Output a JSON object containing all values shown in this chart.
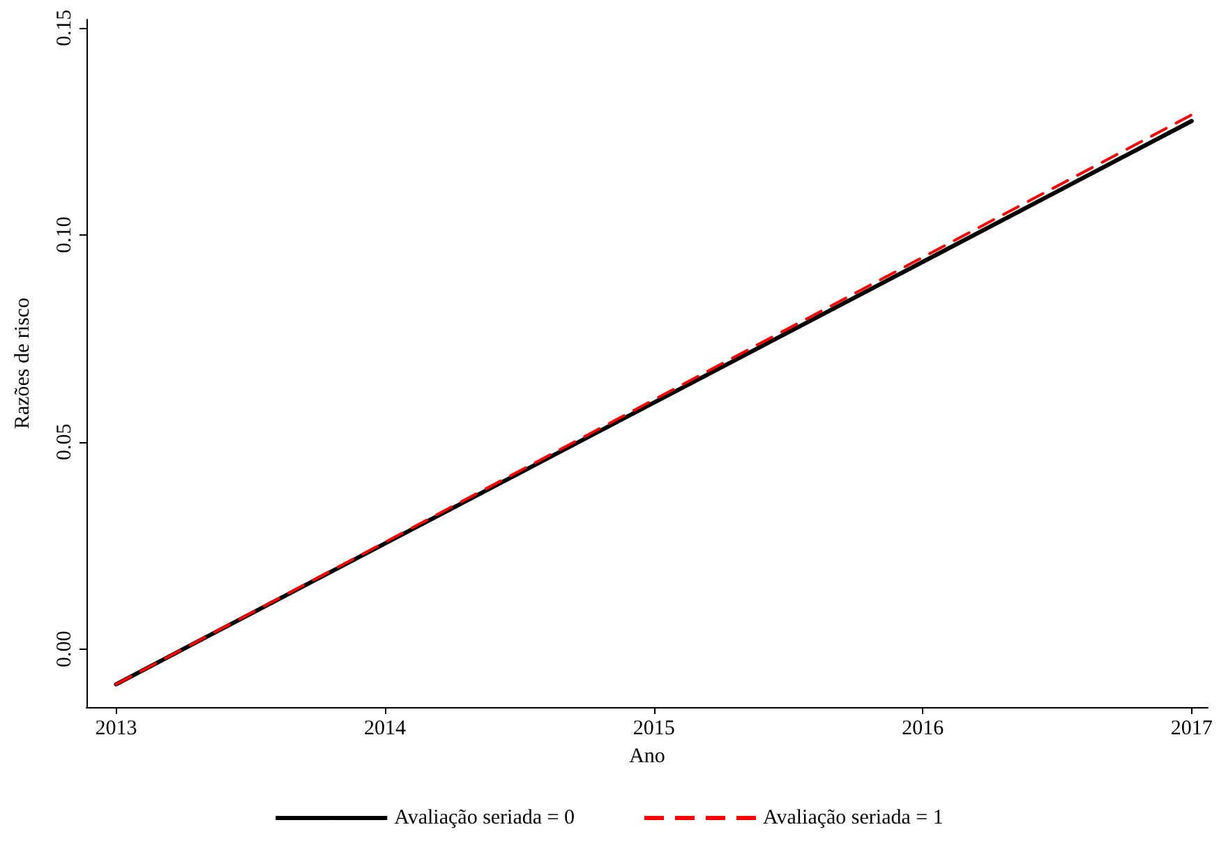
{
  "chart_data": {
    "type": "line",
    "xlabel": "Ano",
    "ylabel": "Razões de risco",
    "x": [
      2013,
      2014,
      2015,
      2016,
      2017
    ],
    "series": [
      {
        "name": "Avaliação seriada = 0",
        "color": "#000000",
        "line_style": "solid",
        "values": [
          -0.0085,
          0.0255,
          0.0595,
          0.0935,
          0.1275
        ]
      },
      {
        "name": "Avaliação seriada = 1",
        "color": "#ff0000",
        "line_style": "dashed",
        "values": [
          -0.0085,
          0.0258,
          0.0602,
          0.0946,
          0.129
        ]
      }
    ],
    "xlim": [
      2012.89,
      2017.06
    ],
    "xticks": [
      2013,
      2014,
      2015,
      2016,
      2017
    ],
    "ylim": [
      -0.014,
      0.152
    ],
    "yticks": [
      {
        "value": 0,
        "label": "0.00"
      },
      {
        "value": 0.05,
        "label": "0.05"
      },
      {
        "value": 0.1,
        "label": "0.10"
      },
      {
        "value": 0.15,
        "label": "0.15"
      }
    ],
    "grid": false,
    "legend": "bottom",
    "marker": "none"
  }
}
